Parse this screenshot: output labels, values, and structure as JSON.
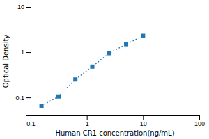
{
  "chart_data": {
    "type": "line",
    "x": [
      0.156,
      0.313,
      0.625,
      1.25,
      2.5,
      5.0,
      10.0
    ],
    "values": [
      0.065,
      0.105,
      0.25,
      0.48,
      0.95,
      1.5,
      2.3
    ],
    "xlabel": "Human CR1 concentration(ng/mL)",
    "ylabel": "Optical Density",
    "xlim": [
      0.1,
      100
    ],
    "ylim": [
      0.04,
      10
    ],
    "xticks": [
      0.1,
      1,
      10,
      100
    ],
    "yticks": [
      0.1,
      1,
      10
    ],
    "log": true,
    "marker": "square",
    "line_style": "dotted"
  }
}
